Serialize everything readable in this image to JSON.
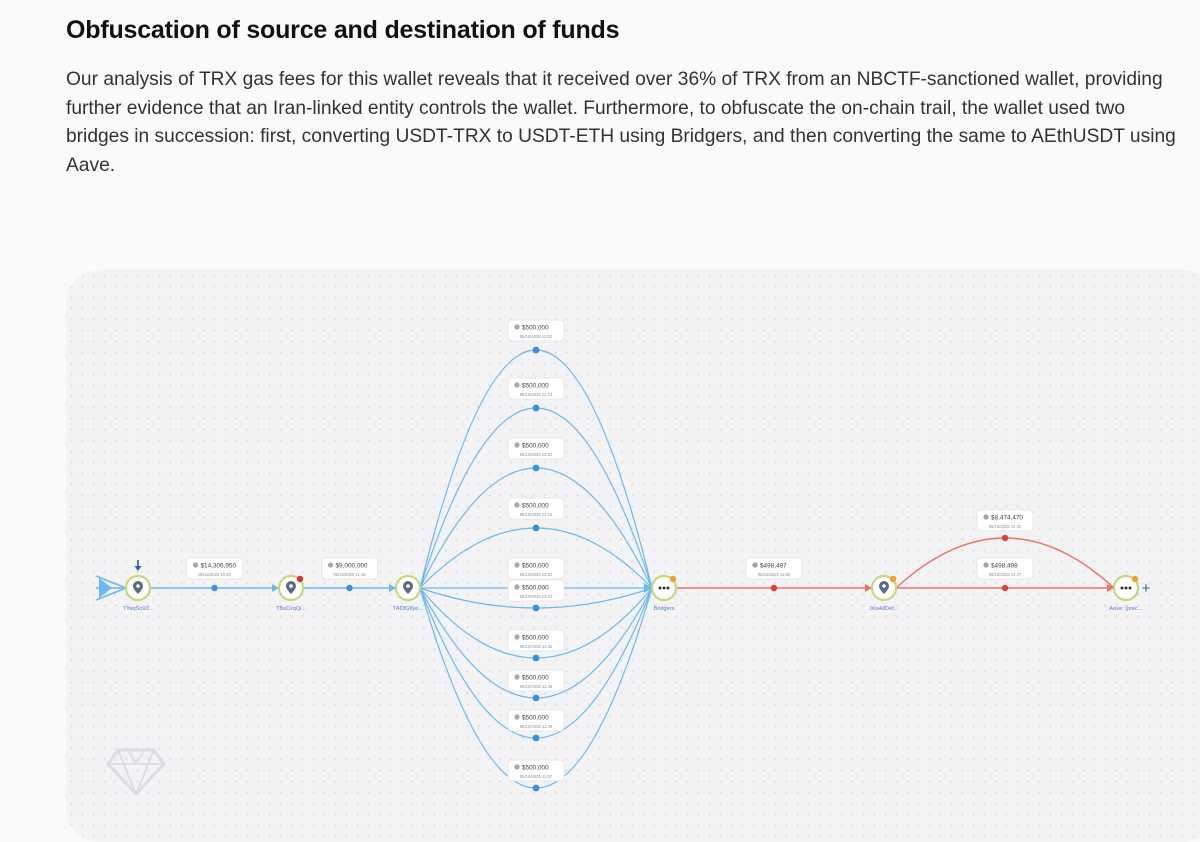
{
  "section": {
    "title": "Obfuscation of source and destination of funds",
    "body": "Our analysis of TRX gas fees for this wallet reveals that it received over 36% of TRX from an NBCTF-sanctioned wallet, providing further evidence that an Iran-linked entity controls the wallet. Furthermore, to obfuscate the on-chain trail, the wallet used two bridges in succession: first, converting USDT-TRX to USDT-ETH using Bridgers, and then converting the same to AEthUSDT using Aave."
  },
  "graph": {
    "colors": {
      "trx_edge": "#6cb8f0",
      "eth_edge": "#ec7268",
      "node_ring": "#c9d77b",
      "node_icon": "#5a6c7e",
      "red_dot": "#d9323c",
      "orange_dot": "#f0a12e",
      "node_label": "#5b7fc7"
    },
    "nodes": [
      {
        "id": "n1",
        "label": "TYaqSo93...",
        "icon": "map-pin-icon",
        "badge": "none",
        "incoming_marker": "arrow-down-icon"
      },
      {
        "id": "n2",
        "label": "TBsCvqQi...",
        "icon": "map-pin-icon",
        "badge": "red"
      },
      {
        "id": "n3",
        "label": "TADfGfiye...",
        "icon": "map-pin-icon",
        "badge": "none"
      },
      {
        "id": "n4",
        "label": "Bridgers",
        "icon": "ellipsis-icon",
        "badge": "orange"
      },
      {
        "id": "n5",
        "label": "0xa4dDef...",
        "icon": "map-pin-icon",
        "badge": "orange"
      },
      {
        "id": "n6",
        "label": "Aave: (prec...",
        "icon": "ellipsis-icon",
        "badge": "orange",
        "expand": "+"
      }
    ],
    "edges": [
      {
        "from": "n1",
        "to": "n2",
        "amount": "$14,306,950",
        "date": "05/14/2025 10:30",
        "chain": "trx"
      },
      {
        "from": "n2",
        "to": "n3",
        "amount": "$9,000,000",
        "date": "06/10/2025 11:16",
        "chain": "trx"
      },
      {
        "from": "n3",
        "to": "n4",
        "amount": "$500,000",
        "date": "06/10/2025 12:02",
        "chain": "trx"
      },
      {
        "from": "n3",
        "to": "n4",
        "amount": "$500,000",
        "date": "06/10/2025 12:14",
        "chain": "trx"
      },
      {
        "from": "n3",
        "to": "n4",
        "amount": "$500,000",
        "date": "06/10/2025 12:22",
        "chain": "trx"
      },
      {
        "from": "n3",
        "to": "n4",
        "amount": "$500,000",
        "date": "06/10/2025 12:15",
        "chain": "trx"
      },
      {
        "from": "n3",
        "to": "n4",
        "amount": "$500,000",
        "date": "06/10/2025 12:22",
        "chain": "trx"
      },
      {
        "from": "n3",
        "to": "n4",
        "amount": "$500,000",
        "date": "06/10/2025 12:24",
        "chain": "trx"
      },
      {
        "from": "n3",
        "to": "n4",
        "amount": "$500,000",
        "date": "06/10/2025 11:42",
        "chain": "trx"
      },
      {
        "from": "n3",
        "to": "n4",
        "amount": "$500,000",
        "date": "06/10/2025 11:46",
        "chain": "trx"
      },
      {
        "from": "n3",
        "to": "n4",
        "amount": "$500,000",
        "date": "06/10/2025 11:49",
        "chain": "trx"
      },
      {
        "from": "n3",
        "to": "n4",
        "amount": "$500,000",
        "date": "06/10/2025 11:57",
        "chain": "trx"
      },
      {
        "from": "n4",
        "to": "n5",
        "amount": "$498,497",
        "date": "06/10/2025 11:50",
        "chain": "eth"
      },
      {
        "from": "n5",
        "to": "n6",
        "amount": "$8,474,470",
        "date": "06/10/2025 12:32",
        "chain": "eth"
      },
      {
        "from": "n5",
        "to": "n6",
        "amount": "$498,498",
        "date": "06/10/2025 12:37",
        "chain": "eth"
      }
    ],
    "watermark": "diamond-logo-icon"
  }
}
